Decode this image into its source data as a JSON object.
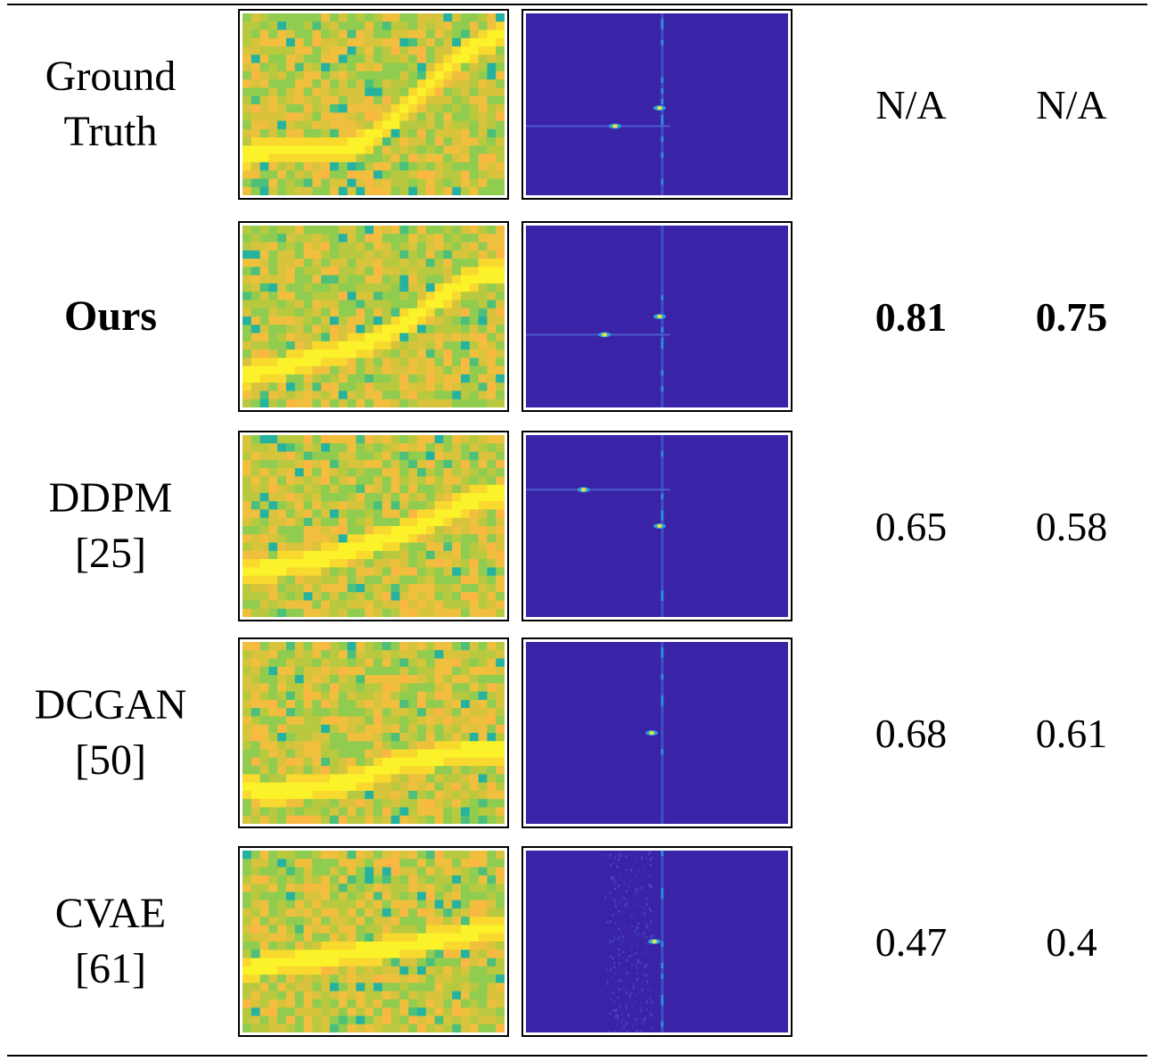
{
  "rows": [
    {
      "label_line1": "Ground",
      "label_line2": "Truth",
      "bold": false,
      "metric_1": "N/A",
      "metric_2": "N/A",
      "heat_curve": [
        0.22,
        0.24,
        0.25,
        0.26,
        0.25,
        0.25,
        0.27,
        0.32,
        0.4,
        0.5,
        0.6,
        0.7,
        0.78,
        0.84,
        0.88
      ],
      "fft_peaks": [
        [
          0.34,
          0.62
        ],
        [
          0.51,
          0.52
        ]
      ]
    },
    {
      "label_line1": "Ours",
      "label_line2": "",
      "bold": true,
      "metric_1": "0.81",
      "metric_2": "0.75",
      "heat_curve": [
        0.18,
        0.2,
        0.22,
        0.25,
        0.28,
        0.3,
        0.33,
        0.37,
        0.42,
        0.48,
        0.55,
        0.62,
        0.69,
        0.73,
        0.73
      ],
      "fft_peaks": [
        [
          0.3,
          0.6
        ],
        [
          0.51,
          0.5
        ]
      ]
    },
    {
      "label_line1": "DDPM",
      "label_line2": "[25]",
      "bold": false,
      "metric_1": "0.65",
      "metric_2": "0.58",
      "heat_curve": [
        0.25,
        0.26,
        0.28,
        0.3,
        0.32,
        0.35,
        0.38,
        0.41,
        0.44,
        0.47,
        0.52,
        0.57,
        0.62,
        0.66,
        0.68
      ],
      "fft_peaks": [
        [
          0.22,
          0.3
        ],
        [
          0.51,
          0.5
        ]
      ]
    },
    {
      "label_line1": "DCGAN",
      "label_line2": "[50]",
      "bold": false,
      "metric_1": "0.68",
      "metric_2": "0.61",
      "heat_curve": [
        0.2,
        0.18,
        0.18,
        0.19,
        0.2,
        0.22,
        0.24,
        0.28,
        0.32,
        0.34,
        0.36,
        0.38,
        0.4,
        0.4,
        0.4
      ],
      "fft_peaks": [
        [
          0.48,
          0.5
        ]
      ]
    },
    {
      "label_line1": "CVAE",
      "label_line2": "[61]",
      "bold": false,
      "metric_1": "0.47",
      "metric_2": "0.4",
      "heat_curve": [
        0.35,
        0.37,
        0.38,
        0.4,
        0.41,
        0.42,
        0.44,
        0.45,
        0.46,
        0.48,
        0.5,
        0.52,
        0.54,
        0.56,
        0.57
      ],
      "fft_peaks": [
        [
          0.49,
          0.5
        ]
      ]
    }
  ]
}
